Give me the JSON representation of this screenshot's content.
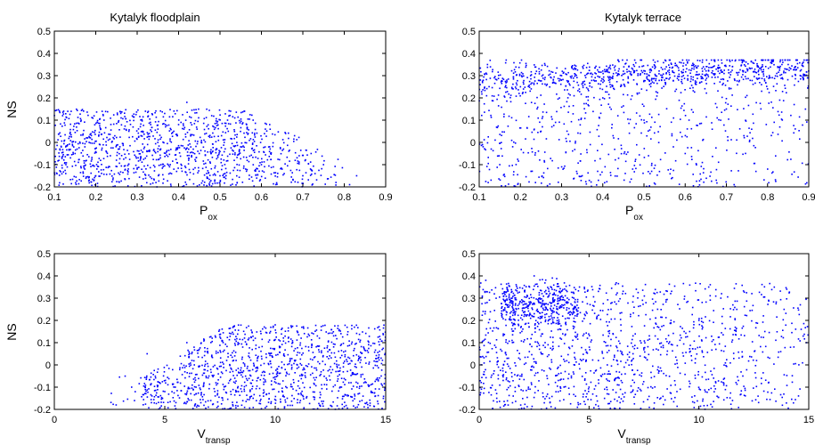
{
  "chart_data": [
    {
      "type": "scatter",
      "panel": "top-left",
      "title": "Kytalyk floodplain",
      "ylabel": "NS",
      "xlabel": "P",
      "xlabel_sub": "ox",
      "xlim": [
        0.1,
        0.9
      ],
      "ylim": [
        -0.2,
        0.5
      ],
      "xticks": [
        "0.1",
        "0.2",
        "0.3",
        "0.4",
        "0.5",
        "0.6",
        "0.7",
        "0.8",
        "0.9"
      ],
      "yticks": [
        "-0.2",
        "-0.1",
        "0",
        "0.1",
        "0.2",
        "0.3",
        "0.4",
        "0.5"
      ],
      "marker_color": "#0000ff",
      "n_points": 1200,
      "points": [
        [
          0.12,
          0.12
        ],
        [
          0.15,
          -0.05
        ],
        [
          0.18,
          0.02
        ],
        [
          0.2,
          -0.15
        ],
        [
          0.22,
          0.1
        ],
        [
          0.25,
          -0.08
        ],
        [
          0.28,
          0.05
        ],
        [
          0.3,
          -0.12
        ],
        [
          0.32,
          0.14
        ],
        [
          0.35,
          0.0
        ],
        [
          0.38,
          -0.1
        ],
        [
          0.4,
          0.08
        ],
        [
          0.42,
          0.18
        ],
        [
          0.45,
          -0.05
        ],
        [
          0.48,
          0.12
        ],
        [
          0.5,
          -0.15
        ],
        [
          0.52,
          0.05
        ],
        [
          0.55,
          -0.02
        ],
        [
          0.58,
          0.1
        ],
        [
          0.6,
          -0.1
        ],
        [
          0.62,
          0.08
        ],
        [
          0.65,
          -0.12
        ],
        [
          0.68,
          0.03
        ],
        [
          0.7,
          -0.15
        ],
        [
          0.72,
          -0.05
        ],
        [
          0.75,
          -0.1
        ],
        [
          0.78,
          -0.18
        ],
        [
          0.83,
          -0.15
        ]
      ]
    },
    {
      "type": "scatter",
      "panel": "top-right",
      "title": "Kytalyk terrace",
      "ylabel": "",
      "xlabel": "P",
      "xlabel_sub": "ox",
      "xlim": [
        0.1,
        0.9
      ],
      "ylim": [
        -0.2,
        0.5
      ],
      "xticks": [
        "0.1",
        "0.2",
        "0.3",
        "0.4",
        "0.5",
        "0.6",
        "0.7",
        "0.8",
        "0.9"
      ],
      "yticks": [
        "-0.2",
        "-0.1",
        "0",
        "0.1",
        "0.2",
        "0.3",
        "0.4",
        "0.5"
      ],
      "marker_color": "#0000ff",
      "n_points": 1400,
      "points": [
        [
          0.12,
          0.35
        ],
        [
          0.15,
          -0.1
        ],
        [
          0.2,
          0.25
        ],
        [
          0.25,
          0.05
        ],
        [
          0.3,
          0.3
        ],
        [
          0.35,
          -0.15
        ],
        [
          0.4,
          0.2
        ],
        [
          0.45,
          0.32
        ],
        [
          0.5,
          0.1
        ],
        [
          0.55,
          0.28
        ],
        [
          0.6,
          -0.05
        ],
        [
          0.65,
          0.3
        ],
        [
          0.7,
          0.15
        ],
        [
          0.75,
          0.33
        ],
        [
          0.8,
          -0.12
        ],
        [
          0.85,
          0.35
        ],
        [
          0.89,
          0.3
        ]
      ]
    },
    {
      "type": "scatter",
      "panel": "bottom-left",
      "title": "",
      "ylabel": "NS",
      "xlabel": "V",
      "xlabel_sub": "transp",
      "xlim": [
        0,
        15
      ],
      "ylim": [
        -0.2,
        0.5
      ],
      "xticks": [
        "0",
        "5",
        "10",
        "15"
      ],
      "yticks": [
        "-0.2",
        "-0.1",
        "0",
        "0.1",
        "0.2",
        "0.3",
        "0.4",
        "0.5"
      ],
      "marker_color": "#0000ff",
      "n_points": 1200,
      "points": [
        [
          2.8,
          -0.18
        ],
        [
          3.5,
          -0.1
        ],
        [
          4.2,
          0.05
        ],
        [
          5.0,
          -0.12
        ],
        [
          6.0,
          0.1
        ],
        [
          7.0,
          -0.05
        ],
        [
          8.0,
          0.14
        ],
        [
          9.0,
          -0.15
        ],
        [
          10.0,
          0.18
        ],
        [
          11.0,
          0.0
        ],
        [
          12.0,
          0.12
        ],
        [
          13.0,
          -0.1
        ],
        [
          14.0,
          0.08
        ],
        [
          14.8,
          -0.05
        ]
      ]
    },
    {
      "type": "scatter",
      "panel": "bottom-right",
      "title": "",
      "ylabel": "",
      "xlabel": "V",
      "xlabel_sub": "transp",
      "xlim": [
        0,
        15
      ],
      "ylim": [
        -0.2,
        0.5
      ],
      "xticks": [
        "0",
        "5",
        "10",
        "15"
      ],
      "yticks": [
        "-0.2",
        "-0.1",
        "0",
        "0.1",
        "0.2",
        "0.3",
        "0.4",
        "0.5"
      ],
      "marker_color": "#0000ff",
      "n_points": 1600,
      "points": [
        [
          0.3,
          0.38
        ],
        [
          0.8,
          -0.15
        ],
        [
          1.5,
          0.3
        ],
        [
          2.0,
          0.27
        ],
        [
          2.5,
          0.4
        ],
        [
          3.0,
          0.1
        ],
        [
          4.0,
          0.33
        ],
        [
          5.0,
          -0.1
        ],
        [
          6.0,
          0.25
        ],
        [
          7.0,
          0.05
        ],
        [
          8.0,
          0.32
        ],
        [
          9.0,
          -0.12
        ],
        [
          10.0,
          0.2
        ],
        [
          11.0,
          0.3
        ],
        [
          12.0,
          -0.05
        ],
        [
          13.0,
          0.15
        ],
        [
          14.0,
          0.34
        ],
        [
          14.9,
          0.1
        ]
      ]
    }
  ]
}
